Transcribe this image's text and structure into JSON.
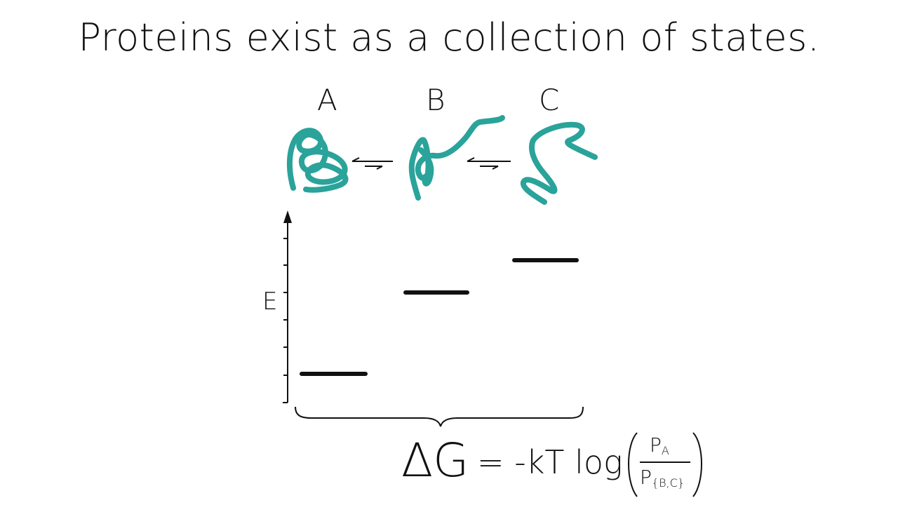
{
  "title": "Proteins exist as a collection of states.",
  "states": [
    {
      "label": "A",
      "energy_rank": 1
    },
    {
      "label": "B",
      "energy_rank": 2
    },
    {
      "label": "C",
      "energy_rank": 3
    }
  ],
  "axis": {
    "label": "E"
  },
  "equation": {
    "delta_g": "ΔG",
    "rhs": "= -kT log",
    "numerator": "P",
    "numerator_sub": "A",
    "denominator": "P",
    "denominator_sub": "{B,C}"
  },
  "colors": {
    "protein": "#2aa39a",
    "ink": "#111111"
  }
}
